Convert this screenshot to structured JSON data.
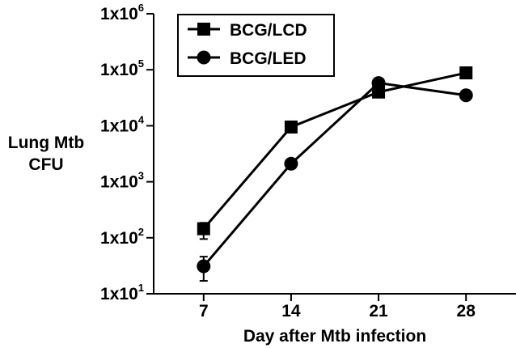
{
  "chart_data": {
    "type": "line",
    "title": "",
    "xlabel": "Day after Mtb infection",
    "ylabel_lines": [
      "Lung Mtb",
      "CFU"
    ],
    "yscale": "log",
    "ylim": [
      10,
      1000000
    ],
    "xlim": [
      3,
      32
    ],
    "x": [
      7,
      14,
      21,
      28
    ],
    "x_tick_labels": [
      "7",
      "14",
      "21",
      "28"
    ],
    "y_ticks": [
      {
        "value": 10,
        "base": "1x10",
        "exp": "1"
      },
      {
        "value": 100,
        "base": "1x10",
        "exp": "2"
      },
      {
        "value": 1000,
        "base": "1x10",
        "exp": "3"
      },
      {
        "value": 10000,
        "base": "1x10",
        "exp": "4"
      },
      {
        "value": 100000,
        "base": "1x10",
        "exp": "5"
      },
      {
        "value": 1000000,
        "base": "1x10",
        "exp": "6"
      }
    ],
    "series": [
      {
        "name": "BCG/LCD",
        "marker": "square",
        "values": [
          145,
          9500,
          40000,
          88000
        ],
        "err_low": [
          95,
          8500,
          37000,
          80000
        ],
        "err_high": [
          185,
          10200,
          43000,
          95000
        ]
      },
      {
        "name": "BCG/LED",
        "marker": "circle",
        "values": [
          31,
          2100,
          58000,
          35000
        ],
        "err_low": [
          17,
          1800,
          52000,
          32000
        ],
        "err_high": [
          46,
          2400,
          63000,
          38000
        ]
      }
    ],
    "grid": false,
    "legend_position": "top-left",
    "colors": {
      "line": "#000000"
    }
  }
}
